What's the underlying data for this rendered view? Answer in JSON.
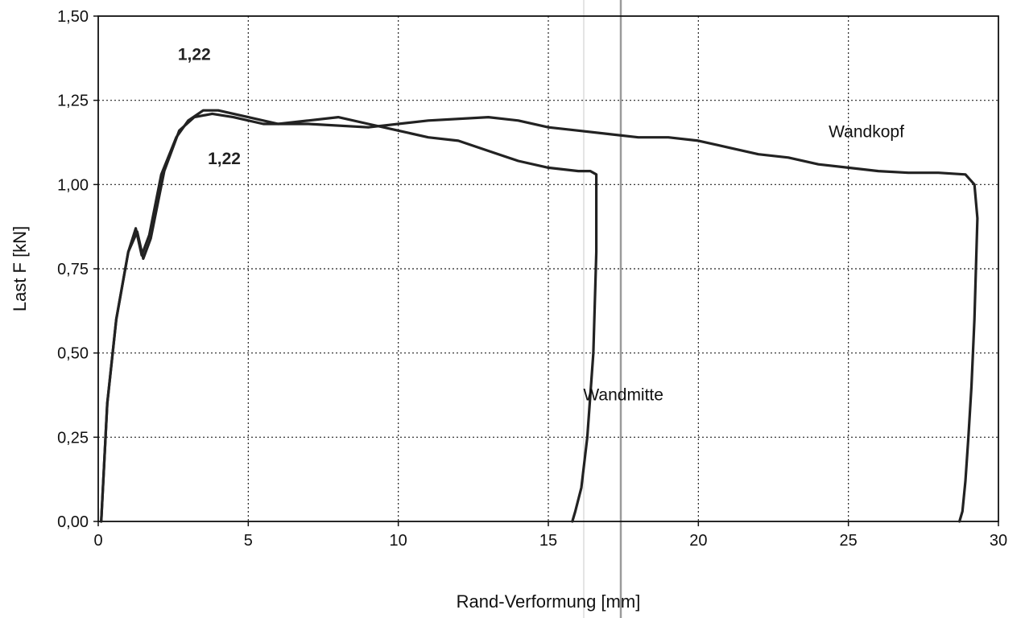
{
  "chart_data": {
    "type": "line",
    "xlabel": "Rand-Verformung [mm]",
    "ylabel": "Last F  [kN]",
    "xlim": [
      0,
      30
    ],
    "ylim": [
      0,
      1.5
    ],
    "x_ticks": [
      "0",
      "5",
      "10",
      "15",
      "20",
      "25",
      "30"
    ],
    "y_ticks": [
      "0,00",
      "0,25",
      "0,50",
      "0,75",
      "1,00",
      "1,25",
      "1,50"
    ],
    "grid": true,
    "series": [
      {
        "name": "Wandmitte",
        "x": [
          0.1,
          0.3,
          0.6,
          1.0,
          1.25,
          1.45,
          1.7,
          2.1,
          2.6,
          3.0,
          3.5,
          4.0,
          5.0,
          6.0,
          7.0,
          8.0,
          9.0,
          10.0,
          11.0,
          12.0,
          13.0,
          14.0,
          15.0,
          16.0,
          16.4,
          16.6,
          16.6,
          16.5,
          16.3,
          16.1,
          15.9,
          15.8
        ],
        "y": [
          0.0,
          0.35,
          0.6,
          0.8,
          0.87,
          0.79,
          0.85,
          1.03,
          1.14,
          1.19,
          1.22,
          1.22,
          1.2,
          1.18,
          1.19,
          1.2,
          1.18,
          1.16,
          1.14,
          1.13,
          1.1,
          1.07,
          1.05,
          1.04,
          1.04,
          1.03,
          0.8,
          0.5,
          0.25,
          0.1,
          0.03,
          0.0
        ]
      },
      {
        "name": "Wandkopf",
        "x": [
          0.1,
          0.3,
          0.6,
          1.0,
          1.3,
          1.5,
          1.75,
          2.2,
          2.7,
          3.2,
          3.8,
          4.5,
          5.5,
          7.0,
          9.0,
          11.0,
          13.0,
          14.0,
          15.0,
          16.0,
          17.0,
          18.0,
          19.0,
          20.0,
          21.0,
          22.0,
          23.0,
          24.0,
          25.0,
          26.0,
          27.0,
          28.0,
          28.9,
          29.2,
          29.3,
          29.2,
          29.1,
          29.0,
          28.9,
          28.8,
          28.7
        ],
        "y": [
          0.0,
          0.35,
          0.6,
          0.8,
          0.86,
          0.78,
          0.84,
          1.04,
          1.16,
          1.2,
          1.21,
          1.2,
          1.18,
          1.18,
          1.17,
          1.19,
          1.2,
          1.19,
          1.17,
          1.16,
          1.15,
          1.14,
          1.14,
          1.13,
          1.11,
          1.09,
          1.08,
          1.06,
          1.05,
          1.04,
          1.035,
          1.035,
          1.03,
          1.0,
          0.9,
          0.6,
          0.4,
          0.25,
          0.12,
          0.03,
          0.0
        ]
      }
    ],
    "annotations": [
      {
        "text": "1,22",
        "x": 3.2,
        "y": 1.37,
        "bold": true
      },
      {
        "text": "1,22",
        "x": 4.2,
        "y": 1.06,
        "bold": true
      },
      {
        "text": "Wandkopf",
        "x": 25.6,
        "y": 1.14,
        "bold": false
      },
      {
        "text": "Wandmitte",
        "x": 17.5,
        "y": 0.36,
        "bold": false
      }
    ]
  }
}
